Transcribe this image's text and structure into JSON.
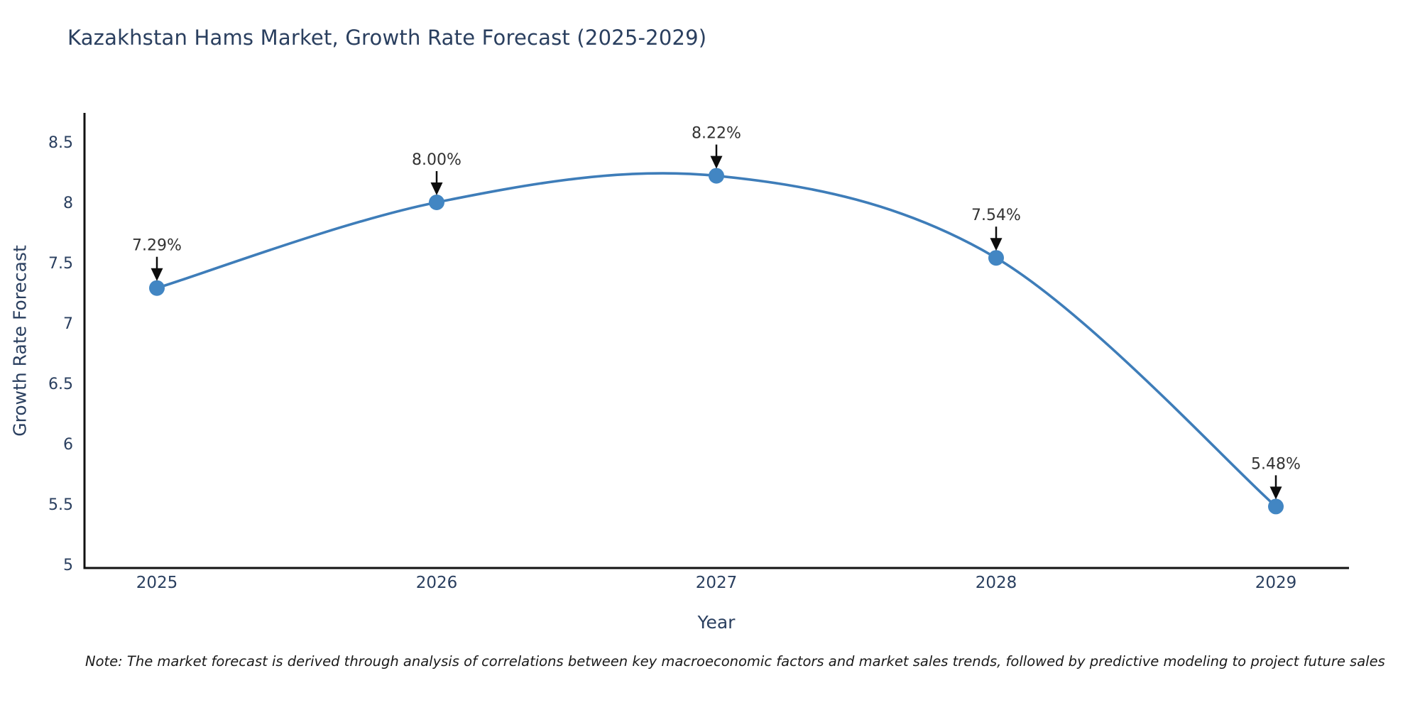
{
  "header": {
    "title": "Kazakhstan Hams Market, Growth Rate Forecast (2025-2029)"
  },
  "chart_data": {
    "type": "line",
    "title": "Kazakhstan Hams Market, Growth Rate Forecast (2025-2029)",
    "categories": [
      "2025",
      "2026",
      "2027",
      "2028",
      "2029"
    ],
    "values": [
      7.29,
      8.0,
      8.22,
      7.54,
      5.48
    ],
    "point_labels": [
      "7.29%",
      "8.00%",
      "8.22%",
      "7.54%",
      "5.48%"
    ],
    "xlabel": "Year",
    "ylabel": "Growth Rate Forecast",
    "ytick_values": [
      5,
      5.5,
      6,
      6.5,
      7,
      7.5,
      8,
      8.5
    ],
    "ytick_labels": [
      "5",
      "5.5",
      "6",
      "6.5",
      "7",
      "7.5",
      "8",
      "8.5"
    ],
    "ylim": [
      5,
      8.76
    ],
    "line_shape": "spline",
    "grid": false,
    "legend": "none",
    "annotations": "arrow-down-to-point",
    "colors": {
      "line": "#3e7db9",
      "marker": "#4286c3",
      "axis": "#111111",
      "tick_text": "#2a3f5f",
      "annotation_text": "#333333",
      "arrow": "#0d0d0d"
    }
  },
  "footnote": {
    "text": "Note: The market forecast is derived through analysis of correlations between key macroeconomic factors and market sales trends, followed by predictive modeling to project future sales"
  }
}
